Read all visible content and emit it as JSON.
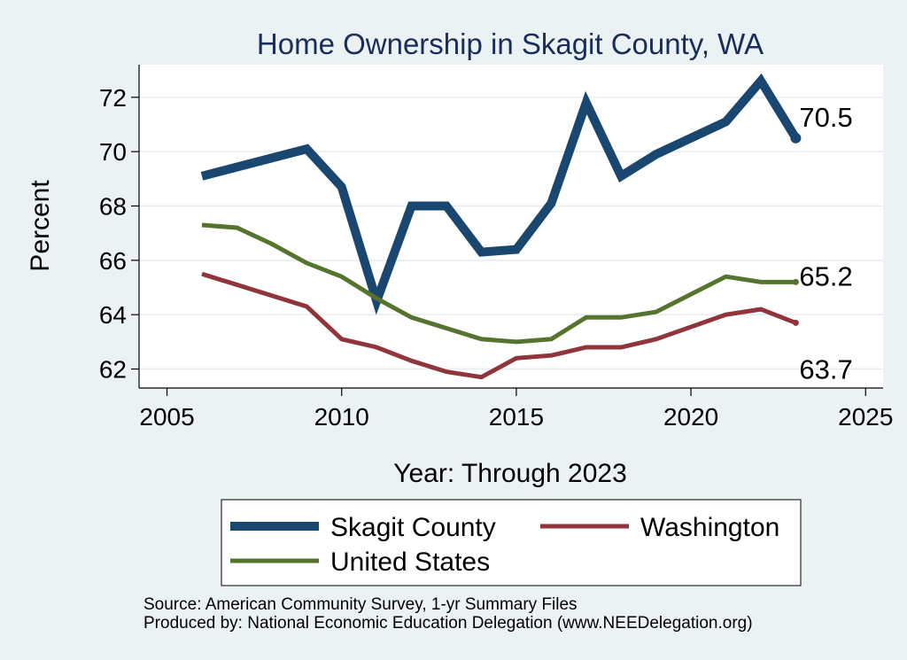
{
  "chart_data": {
    "type": "line",
    "title": "Home Ownership in Skagit County, WA",
    "xlabel": "Year: Through 2023",
    "ylabel": "Percent",
    "xlim": [
      2004.2,
      2025.5
    ],
    "ylim": [
      61.3,
      73.2
    ],
    "xticks": [
      2005,
      2010,
      2015,
      2020,
      2025
    ],
    "yticks": [
      62,
      64,
      66,
      68,
      70,
      72
    ],
    "grid": true,
    "legend_position": "bottom",
    "series": [
      {
        "name": "Skagit County",
        "color": "#1a476f",
        "x": [
          2006,
          2009,
          2010,
          2011,
          2012,
          2013,
          2014,
          2015,
          2016,
          2017,
          2018,
          2019,
          2021,
          2022,
          2023
        ],
        "y": [
          69.1,
          70.1,
          68.7,
          64.5,
          68.0,
          68.0,
          66.3,
          66.4,
          68.1,
          71.8,
          69.1,
          69.9,
          71.1,
          72.6,
          70.5
        ],
        "end_label": "70.5"
      },
      {
        "name": "Washington",
        "color": "#90353b",
        "x": [
          2006,
          2009,
          2010,
          2011,
          2012,
          2013,
          2014,
          2015,
          2016,
          2017,
          2018,
          2019,
          2021,
          2022,
          2023
        ],
        "y": [
          65.5,
          64.3,
          63.1,
          62.8,
          62.3,
          61.9,
          61.7,
          62.4,
          62.5,
          62.8,
          62.8,
          63.1,
          64.0,
          64.2,
          63.7
        ],
        "end_label": "63.7"
      },
      {
        "name": "United States",
        "color": "#55752f",
        "x": [
          2006,
          2007,
          2008,
          2009,
          2010,
          2011,
          2012,
          2013,
          2014,
          2015,
          2016,
          2017,
          2018,
          2019,
          2021,
          2022,
          2023
        ],
        "y": [
          67.3,
          67.2,
          66.6,
          65.9,
          65.4,
          64.6,
          63.9,
          63.5,
          63.1,
          63.0,
          63.1,
          63.9,
          63.9,
          64.1,
          65.4,
          65.2,
          65.2
        ],
        "end_label": "65.2"
      }
    ],
    "notes": [
      "Source: American Community Survey, 1-yr Summary Files",
      "Produced by: National Economic Education Delegation (www.NEEDelegation.org)"
    ]
  }
}
